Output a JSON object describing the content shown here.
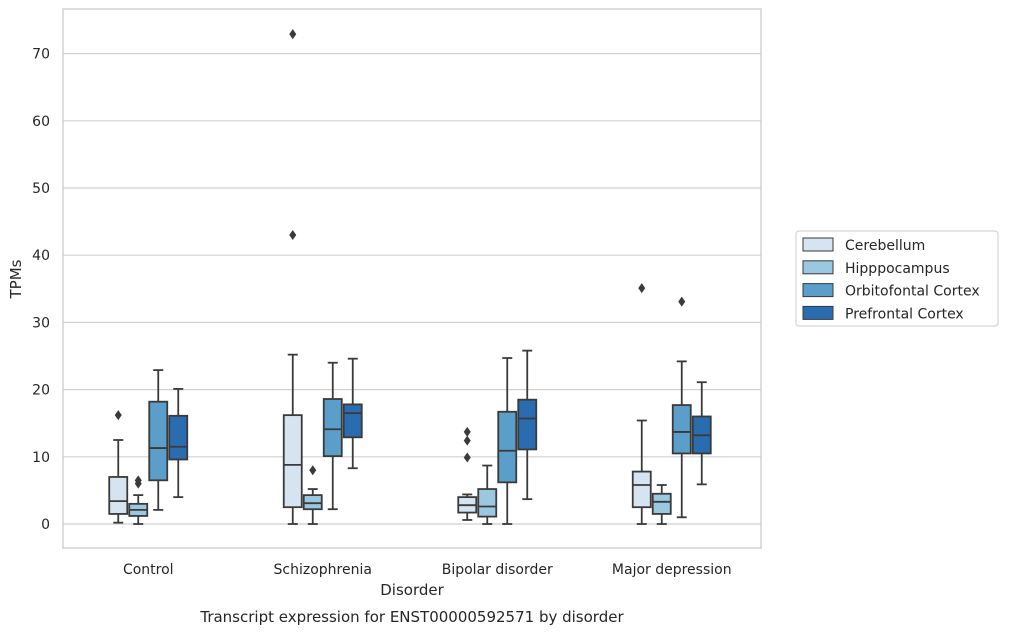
{
  "chart_data": {
    "type": "box",
    "caption": "Transcript expression for ENST00000592571 by disorder",
    "xlabel": "Disorder",
    "ylabel": "TPMs",
    "ylim": [
      -3.5,
      76.5
    ],
    "yticks": [
      0,
      10,
      20,
      30,
      40,
      50,
      60,
      70
    ],
    "grid": true,
    "legend_position": "right",
    "categories": [
      "Control",
      "Schizophrenia",
      "Bipolar disorder",
      "Major depression"
    ],
    "series": [
      {
        "name": "Cerebellum",
        "color": "#d6e4f2",
        "boxes": [
          {
            "whisker_low": 0.2,
            "q1": 1.5,
            "median": 3.4,
            "q3": 7.0,
            "whisker_high": 12.5,
            "outliers": [
              16.2
            ]
          },
          {
            "whisker_low": 0.0,
            "q1": 2.5,
            "median": 8.8,
            "q3": 16.2,
            "whisker_high": 25.2,
            "outliers": [
              43.0,
              72.9
            ]
          },
          {
            "whisker_low": 0.6,
            "q1": 1.7,
            "median": 2.8,
            "q3": 4.0,
            "whisker_high": 4.4,
            "outliers": [
              9.9,
              12.4,
              13.7
            ]
          },
          {
            "whisker_low": 0.0,
            "q1": 2.5,
            "median": 5.8,
            "q3": 7.8,
            "whisker_high": 15.4,
            "outliers": [
              35.1
            ]
          }
        ]
      },
      {
        "name": "Hipppocampus",
        "color": "#9ac8e0",
        "boxes": [
          {
            "whisker_low": 0.0,
            "q1": 1.2,
            "median": 2.1,
            "q3": 3.0,
            "whisker_high": 4.3,
            "outliers": [
              6.0,
              6.5
            ]
          },
          {
            "whisker_low": 0.0,
            "q1": 2.2,
            "median": 3.1,
            "q3": 4.3,
            "whisker_high": 5.2,
            "outliers": [
              8.0
            ]
          },
          {
            "whisker_low": 0.0,
            "q1": 1.1,
            "median": 2.6,
            "q3": 5.2,
            "whisker_high": 8.7,
            "outliers": []
          },
          {
            "whisker_low": 0.0,
            "q1": 1.5,
            "median": 3.3,
            "q3": 4.5,
            "whisker_high": 5.8,
            "outliers": []
          }
        ]
      },
      {
        "name": "Orbitofontal Cortex",
        "color": "#5a9ec9",
        "boxes": [
          {
            "whisker_low": 2.1,
            "q1": 6.5,
            "median": 11.3,
            "q3": 18.2,
            "whisker_high": 22.9,
            "outliers": []
          },
          {
            "whisker_low": 2.2,
            "q1": 10.1,
            "median": 14.1,
            "q3": 18.6,
            "whisker_high": 24.0,
            "outliers": []
          },
          {
            "whisker_low": 0.0,
            "q1": 6.2,
            "median": 10.9,
            "q3": 16.7,
            "whisker_high": 24.7,
            "outliers": []
          },
          {
            "whisker_low": 1.0,
            "q1": 10.5,
            "median": 13.7,
            "q3": 17.7,
            "whisker_high": 24.2,
            "outliers": [
              33.1
            ]
          }
        ]
      },
      {
        "name": "Prefrontal Cortex",
        "color": "#2a6cb0",
        "boxes": [
          {
            "whisker_low": 4.0,
            "q1": 9.6,
            "median": 11.5,
            "q3": 16.1,
            "whisker_high": 20.1,
            "outliers": []
          },
          {
            "whisker_low": 8.3,
            "q1": 12.9,
            "median": 16.5,
            "q3": 17.8,
            "whisker_high": 24.6,
            "outliers": []
          },
          {
            "whisker_low": 3.7,
            "q1": 11.1,
            "median": 15.7,
            "q3": 18.5,
            "whisker_high": 25.8,
            "outliers": []
          },
          {
            "whisker_low": 5.9,
            "q1": 10.5,
            "median": 13.2,
            "q3": 16.0,
            "whisker_high": 21.1,
            "outliers": []
          }
        ]
      }
    ]
  }
}
